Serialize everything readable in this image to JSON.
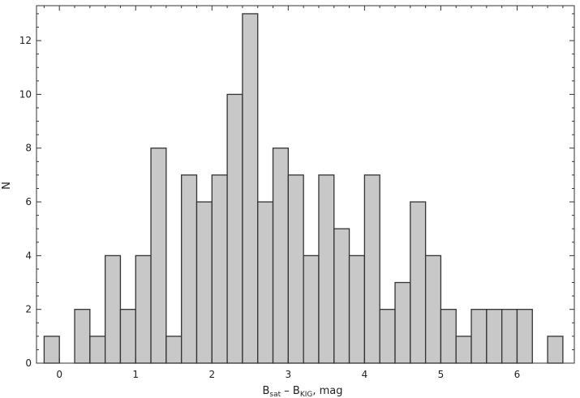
{
  "chart_data": {
    "type": "histogram",
    "bin_width": 0.2,
    "bin_starts": [
      -0.2,
      0.0,
      0.2,
      0.4,
      0.6,
      0.8,
      1.0,
      1.2,
      1.4,
      1.6,
      1.8,
      2.0,
      2.2,
      2.4,
      2.6,
      2.8,
      3.0,
      3.2,
      3.4,
      3.6,
      3.8,
      4.0,
      4.2,
      4.4,
      4.6,
      4.8,
      5.0,
      5.2,
      5.4,
      5.6,
      5.8,
      6.0,
      6.2,
      6.4
    ],
    "counts": [
      1,
      0,
      2,
      1,
      4,
      2,
      4,
      8,
      1,
      7,
      6,
      7,
      10,
      13,
      6,
      8,
      7,
      4,
      7,
      5,
      4,
      7,
      2,
      3,
      6,
      4,
      2,
      1,
      2,
      2,
      2,
      2,
      0,
      1
    ],
    "xlim": [
      -0.3,
      6.75
    ],
    "ylim": [
      0,
      13.3
    ],
    "xticks": [
      0,
      1,
      2,
      3,
      4,
      5,
      6
    ],
    "xtick_labels": [
      "0",
      "1",
      "2",
      "3",
      "4",
      "5",
      "6"
    ],
    "yticks": [
      0,
      2,
      4,
      6,
      8,
      10,
      12
    ],
    "ytick_labels": [
      "0",
      "2",
      "4",
      "6",
      "8",
      "10",
      "12"
    ],
    "xlabel": "B",
    "xlabel_sub1": "sat",
    "xlabel_mid": " – B",
    "xlabel_sub2": "KIG",
    "xlabel_end": ", mag",
    "ylabel": "N",
    "fill_color": "#c8c8c8",
    "edge_color": "#333333"
  }
}
